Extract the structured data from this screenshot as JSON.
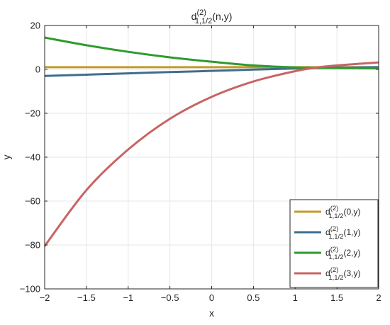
{
  "chart_data": {
    "type": "line",
    "title": {
      "base": "d",
      "sup": "(2)",
      "sub": "1,1/2",
      "args": "(n,y)"
    },
    "xlabel": "x",
    "ylabel": "y",
    "xlim": [
      -2,
      2
    ],
    "ylim": [
      -100,
      20
    ],
    "xticks": [
      -2,
      -1.5,
      -1,
      -0.5,
      0,
      0.5,
      1,
      1.5,
      2
    ],
    "xtick_labels": [
      "−2",
      "−1.5",
      "−1",
      "−0.5",
      "0",
      "0.5",
      "1",
      "1.5",
      "2"
    ],
    "yticks": [
      -100,
      -80,
      -60,
      -40,
      -20,
      0,
      20
    ],
    "ytick_labels": [
      "−100",
      "−80",
      "−60",
      "−40",
      "−20",
      "0",
      "20"
    ],
    "grid": true,
    "legend_position": "bottom-right",
    "x": [
      -2,
      -1.5,
      -1,
      -0.5,
      0,
      0.5,
      1,
      1.25,
      1.5,
      2
    ],
    "series": [
      {
        "name": {
          "base": "d",
          "sup": "(2)",
          "sub": "1,1/2",
          "args": "(0,y)"
        },
        "color": "#C49A2A",
        "values": [
          1,
          1,
          1,
          1,
          1,
          1,
          1,
          1,
          1,
          1
        ]
      },
      {
        "name": {
          "base": "d",
          "sup": "(2)",
          "sub": "1,1/2",
          "args": "(1,y)"
        },
        "color": "#3E6E8E",
        "values": [
          -3,
          -2.4,
          -1.8,
          -1.2,
          -0.7,
          -0.1,
          0.4,
          0.6,
          0.8,
          1.0
        ]
      },
      {
        "name": {
          "base": "d",
          "sup": "(2)",
          "sub": "1,1/2",
          "args": "(2,y)"
        },
        "color": "#2E9A2E",
        "values": [
          14.5,
          11,
          8,
          5.5,
          3.5,
          1.8,
          0.9,
          0.7,
          0.6,
          0.5
        ]
      },
      {
        "name": {
          "base": "d",
          "sup": "(2)",
          "sub": "1,1/2",
          "args": "(3,y)"
        },
        "color": "#C86464",
        "values": [
          -80.5,
          -55,
          -36.5,
          -22.5,
          -12.5,
          -5.5,
          -0.8,
          0.8,
          1.8,
          3.2
        ]
      }
    ]
  }
}
